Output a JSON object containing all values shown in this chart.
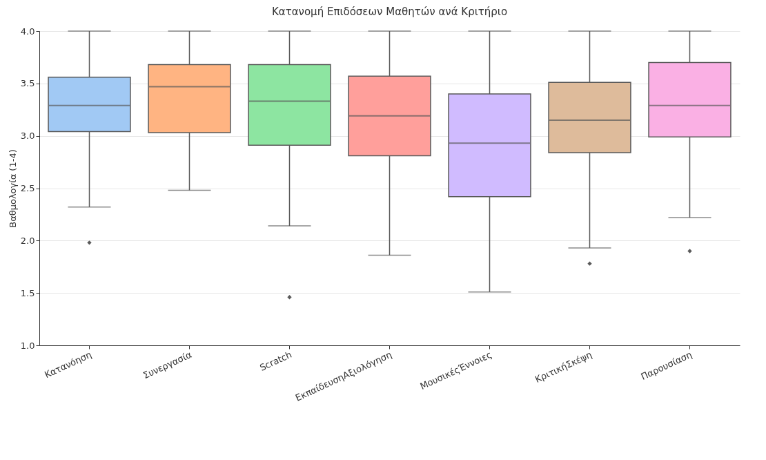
{
  "chart_data": {
    "type": "box",
    "title": "Κατανομή Επιδόσεων Μαθητών ανά Κριτήριο",
    "ylabel": "Βαθμολογία (1-4)",
    "categories": [
      "Κατανόηση",
      "Συνεργασία",
      "Scratch",
      "ΕκπαίδευσηΑξιολόγηση",
      "ΜουσικέςΈννοιες",
      "ΚριτικήΣκέψη",
      "Παρουσίαση"
    ],
    "colors": [
      "#a1c9f4",
      "#ffb482",
      "#8de5a1",
      "#ff9f9b",
      "#d0bbff",
      "#debb9b",
      "#fab0e4"
    ],
    "boxes": [
      {
        "low": 2.32,
        "q1": 3.04,
        "median": 3.29,
        "q3": 3.56,
        "high": 4.0,
        "outliers": [
          1.98
        ]
      },
      {
        "low": 2.48,
        "q1": 3.03,
        "median": 3.47,
        "q3": 3.68,
        "high": 4.0
      },
      {
        "low": 2.14,
        "q1": 2.91,
        "median": 3.33,
        "q3": 3.68,
        "high": 4.0,
        "outliers": [
          1.46
        ]
      },
      {
        "low": 1.86,
        "q1": 2.81,
        "median": 3.19,
        "q3": 3.57,
        "high": 4.0
      },
      {
        "low": 1.51,
        "q1": 2.42,
        "median": 2.93,
        "q3": 3.4,
        "high": 4.0
      },
      {
        "low": 1.93,
        "q1": 2.84,
        "median": 3.15,
        "q3": 3.51,
        "high": 4.0,
        "outliers": [
          1.78
        ]
      },
      {
        "low": 2.22,
        "q1": 2.99,
        "median": 3.29,
        "q3": 3.7,
        "high": 4.0,
        "outliers": [
          1.9
        ]
      }
    ],
    "ylim": [
      1.0,
      4.0
    ],
    "yticks": [
      {
        "value": 1,
        "label": "1.0"
      },
      1.5,
      {
        "value": 2,
        "label": "2.0"
      },
      2.5,
      {
        "value": 3,
        "label": "3.0"
      },
      3.5,
      {
        "value": 4,
        "label": "4.0"
      }
    ],
    "grid": "y",
    "marker": "diamond"
  }
}
